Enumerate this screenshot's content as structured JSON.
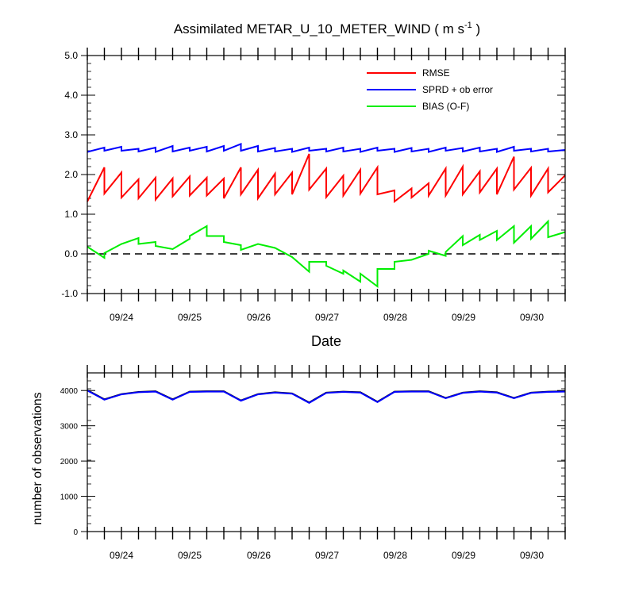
{
  "chart_data": [
    {
      "type": "line",
      "title": "Assimilated METAR_U_10_METER_WIND ( m s",
      "title_superscript": "-1",
      "title_close": " )",
      "xlabel": "Date",
      "ylabel": "",
      "ylim": [
        -1.0,
        5.0
      ],
      "xlim": [
        0,
        7
      ],
      "yticks": [
        "-1.0",
        "0.0",
        "1.0",
        "2.0",
        "3.0",
        "4.0",
        "5.0"
      ],
      "xtick_labels": [
        "09/24",
        "09/25",
        "09/26",
        "09/27",
        "09/28",
        "09/29",
        "09/30"
      ],
      "legend_position": "top-right",
      "zero_line": true,
      "series": [
        {
          "name": "RMSE",
          "color": "#ff0000",
          "points": [
            [
              0.0,
              1.32
            ],
            [
              0.25,
              2.18
            ],
            [
              0.25,
              1.52
            ],
            [
              0.5,
              2.05
            ],
            [
              0.5,
              1.42
            ],
            [
              0.75,
              1.88
            ],
            [
              0.75,
              1.4
            ],
            [
              1.0,
              1.92
            ],
            [
              1.0,
              1.37
            ],
            [
              1.25,
              1.9
            ],
            [
              1.25,
              1.45
            ],
            [
              1.5,
              1.95
            ],
            [
              1.5,
              1.47
            ],
            [
              1.75,
              1.92
            ],
            [
              1.75,
              1.47
            ],
            [
              2.0,
              1.9
            ],
            [
              2.0,
              1.4
            ],
            [
              2.25,
              2.18
            ],
            [
              2.25,
              1.5
            ],
            [
              2.5,
              2.12
            ],
            [
              2.5,
              1.4
            ],
            [
              2.75,
              2.02
            ],
            [
              2.75,
              1.5
            ],
            [
              3.0,
              2.05
            ],
            [
              3.0,
              1.5
            ],
            [
              3.25,
              2.52
            ],
            [
              3.25,
              1.62
            ],
            [
              3.5,
              2.15
            ],
            [
              3.5,
              1.43
            ],
            [
              3.75,
              1.97
            ],
            [
              3.75,
              1.47
            ],
            [
              4.0,
              2.12
            ],
            [
              4.0,
              1.52
            ],
            [
              4.25,
              2.18
            ],
            [
              4.25,
              1.5
            ],
            [
              4.5,
              1.6
            ],
            [
              4.5,
              1.32
            ],
            [
              4.75,
              1.65
            ],
            [
              4.75,
              1.42
            ],
            [
              5.0,
              1.78
            ],
            [
              5.0,
              1.47
            ],
            [
              5.25,
              2.15
            ],
            [
              5.25,
              1.47
            ],
            [
              5.5,
              2.2
            ],
            [
              5.5,
              1.5
            ],
            [
              5.75,
              2.08
            ],
            [
              5.75,
              1.55
            ],
            [
              6.0,
              2.15
            ],
            [
              6.0,
              1.5
            ],
            [
              6.25,
              2.45
            ],
            [
              6.25,
              1.62
            ],
            [
              6.5,
              2.17
            ],
            [
              6.5,
              1.47
            ],
            [
              6.75,
              2.15
            ],
            [
              6.75,
              1.55
            ],
            [
              7.0,
              1.98
            ]
          ]
        },
        {
          "name": "SPRD + ob error",
          "color": "#0000ff",
          "points": [
            [
              0.0,
              2.57
            ],
            [
              0.25,
              2.68
            ],
            [
              0.25,
              2.6
            ],
            [
              0.5,
              2.7
            ],
            [
              0.5,
              2.6
            ],
            [
              0.75,
              2.65
            ],
            [
              0.75,
              2.58
            ],
            [
              1.0,
              2.68
            ],
            [
              1.0,
              2.57
            ],
            [
              1.25,
              2.72
            ],
            [
              1.25,
              2.58
            ],
            [
              1.5,
              2.68
            ],
            [
              1.5,
              2.6
            ],
            [
              1.75,
              2.7
            ],
            [
              1.75,
              2.58
            ],
            [
              2.0,
              2.72
            ],
            [
              2.0,
              2.6
            ],
            [
              2.25,
              2.77
            ],
            [
              2.25,
              2.6
            ],
            [
              2.5,
              2.72
            ],
            [
              2.5,
              2.58
            ],
            [
              2.75,
              2.67
            ],
            [
              2.75,
              2.58
            ],
            [
              3.0,
              2.65
            ],
            [
              3.0,
              2.57
            ],
            [
              3.25,
              2.68
            ],
            [
              3.25,
              2.6
            ],
            [
              3.5,
              2.65
            ],
            [
              3.5,
              2.58
            ],
            [
              3.75,
              2.68
            ],
            [
              3.75,
              2.58
            ],
            [
              4.0,
              2.65
            ],
            [
              4.0,
              2.57
            ],
            [
              4.25,
              2.68
            ],
            [
              4.25,
              2.6
            ],
            [
              4.5,
              2.65
            ],
            [
              4.5,
              2.57
            ],
            [
              4.75,
              2.67
            ],
            [
              4.75,
              2.58
            ],
            [
              5.0,
              2.65
            ],
            [
              5.0,
              2.57
            ],
            [
              5.25,
              2.68
            ],
            [
              5.25,
              2.6
            ],
            [
              5.5,
              2.67
            ],
            [
              5.5,
              2.58
            ],
            [
              5.75,
              2.68
            ],
            [
              5.75,
              2.58
            ],
            [
              6.0,
              2.65
            ],
            [
              6.0,
              2.57
            ],
            [
              6.25,
              2.7
            ],
            [
              6.25,
              2.6
            ],
            [
              6.5,
              2.65
            ],
            [
              6.5,
              2.58
            ],
            [
              6.75,
              2.65
            ],
            [
              6.75,
              2.58
            ],
            [
              7.0,
              2.62
            ]
          ]
        },
        {
          "name": "BIAS (O-F)",
          "color": "#00ee00",
          "points": [
            [
              0.0,
              0.18
            ],
            [
              0.25,
              -0.1
            ],
            [
              0.25,
              0.02
            ],
            [
              0.5,
              0.25
            ],
            [
              0.75,
              0.4
            ],
            [
              0.75,
              0.25
            ],
            [
              1.0,
              0.3
            ],
            [
              1.0,
              0.2
            ],
            [
              1.25,
              0.12
            ],
            [
              1.5,
              0.38
            ],
            [
              1.5,
              0.45
            ],
            [
              1.75,
              0.7
            ],
            [
              1.75,
              0.45
            ],
            [
              2.0,
              0.45
            ],
            [
              2.0,
              0.3
            ],
            [
              2.25,
              0.22
            ],
            [
              2.25,
              0.1
            ],
            [
              2.5,
              0.25
            ],
            [
              2.75,
              0.15
            ],
            [
              3.0,
              -0.08
            ],
            [
              3.25,
              -0.45
            ],
            [
              3.25,
              -0.2
            ],
            [
              3.5,
              -0.2
            ],
            [
              3.5,
              -0.3
            ],
            [
              3.75,
              -0.5
            ],
            [
              3.75,
              -0.42
            ],
            [
              4.0,
              -0.7
            ],
            [
              4.0,
              -0.5
            ],
            [
              4.25,
              -0.82
            ],
            [
              4.25,
              -0.38
            ],
            [
              4.5,
              -0.38
            ],
            [
              4.5,
              -0.2
            ],
            [
              4.75,
              -0.15
            ],
            [
              5.0,
              0.0
            ],
            [
              5.0,
              0.08
            ],
            [
              5.25,
              -0.05
            ],
            [
              5.25,
              0.05
            ],
            [
              5.5,
              0.45
            ],
            [
              5.5,
              0.22
            ],
            [
              5.75,
              0.48
            ],
            [
              5.75,
              0.35
            ],
            [
              6.0,
              0.58
            ],
            [
              6.0,
              0.35
            ],
            [
              6.25,
              0.7
            ],
            [
              6.25,
              0.28
            ],
            [
              6.5,
              0.7
            ],
            [
              6.5,
              0.38
            ],
            [
              6.75,
              0.82
            ],
            [
              6.75,
              0.42
            ],
            [
              7.0,
              0.55
            ]
          ]
        }
      ]
    },
    {
      "type": "line",
      "title": "",
      "xlabel": "",
      "ylabel": "number of observations",
      "ylim": [
        0,
        4500
      ],
      "xlim": [
        0,
        7
      ],
      "yticks": [
        "0",
        "1000",
        "2000",
        "3000",
        "4000"
      ],
      "xtick_labels": [
        "09/24",
        "09/25",
        "09/26",
        "09/27",
        "09/28",
        "09/29",
        "09/30"
      ],
      "series": [
        {
          "color": "#000000",
          "points": [
            [
              0.0,
              4010
            ],
            [
              0.25,
              3750
            ],
            [
              0.5,
              3900
            ],
            [
              0.75,
              3960
            ],
            [
              1.0,
              3980
            ],
            [
              1.25,
              3750
            ],
            [
              1.5,
              3970
            ],
            [
              1.75,
              3980
            ],
            [
              2.0,
              3980
            ],
            [
              2.25,
              3720
            ],
            [
              2.5,
              3900
            ],
            [
              2.75,
              3950
            ],
            [
              3.0,
              3920
            ],
            [
              3.25,
              3660
            ],
            [
              3.5,
              3940
            ],
            [
              3.75,
              3970
            ],
            [
              4.0,
              3950
            ],
            [
              4.25,
              3680
            ],
            [
              4.5,
              3970
            ],
            [
              4.75,
              3980
            ],
            [
              5.0,
              3980
            ],
            [
              5.25,
              3790
            ],
            [
              5.5,
              3940
            ],
            [
              5.75,
              3980
            ],
            [
              6.0,
              3950
            ],
            [
              6.25,
              3790
            ],
            [
              6.5,
              3940
            ],
            [
              6.75,
              3970
            ],
            [
              7.0,
              3980
            ]
          ]
        },
        {
          "color": "#0000ff",
          "points": [
            [
              0.0,
              4000
            ],
            [
              0.25,
              3740
            ],
            [
              0.5,
              3890
            ],
            [
              0.75,
              3950
            ],
            [
              1.0,
              3970
            ],
            [
              1.25,
              3740
            ],
            [
              1.5,
              3960
            ],
            [
              1.75,
              3970
            ],
            [
              2.0,
              3970
            ],
            [
              2.25,
              3710
            ],
            [
              2.5,
              3890
            ],
            [
              2.75,
              3940
            ],
            [
              3.0,
              3910
            ],
            [
              3.25,
              3650
            ],
            [
              3.5,
              3930
            ],
            [
              3.75,
              3960
            ],
            [
              4.0,
              3940
            ],
            [
              4.25,
              3670
            ],
            [
              4.5,
              3960
            ],
            [
              4.75,
              3970
            ],
            [
              5.0,
              3970
            ],
            [
              5.25,
              3780
            ],
            [
              5.5,
              3930
            ],
            [
              5.75,
              3970
            ],
            [
              6.0,
              3940
            ],
            [
              6.25,
              3780
            ],
            [
              6.5,
              3930
            ],
            [
              6.75,
              3960
            ],
            [
              7.0,
              3970
            ]
          ]
        }
      ]
    }
  ]
}
